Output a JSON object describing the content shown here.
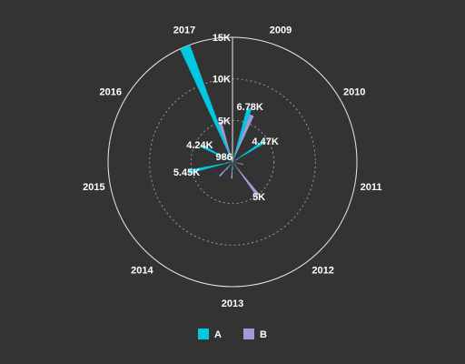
{
  "chart_data": {
    "type": "bar",
    "subtype": "polar",
    "categories": [
      "2009",
      "2010",
      "2011",
      "2012",
      "2013",
      "2014",
      "2015",
      "2016",
      "2017"
    ],
    "series": [
      {
        "name": "A",
        "color": "#00c8e0",
        "values": [
          6780,
          4470,
          300,
          600,
          900,
          1200,
          5450,
          4240,
          15000
        ]
      },
      {
        "name": "B",
        "color": "#a09bd8",
        "values": [
          6100,
          800,
          1300,
          5000,
          2000,
          2300,
          800,
          986,
          5000
        ]
      }
    ],
    "data_labels": [
      {
        "series": 0,
        "index": 0,
        "text": "6.78K"
      },
      {
        "series": 0,
        "index": 1,
        "text": "4.47K"
      },
      {
        "series": 1,
        "index": 3,
        "text": "5K"
      },
      {
        "series": 0,
        "index": 6,
        "text": "5.45K"
      },
      {
        "series": 0,
        "index": 7,
        "text": "4.24K"
      },
      {
        "series": 1,
        "index": 7,
        "text": "986"
      }
    ],
    "radial_axis": {
      "max": 15000,
      "ticks": [
        5000,
        10000,
        15000
      ],
      "tick_labels": [
        "5K",
        "10K",
        "15K"
      ]
    },
    "grid": true,
    "legend_position": "bottom"
  }
}
